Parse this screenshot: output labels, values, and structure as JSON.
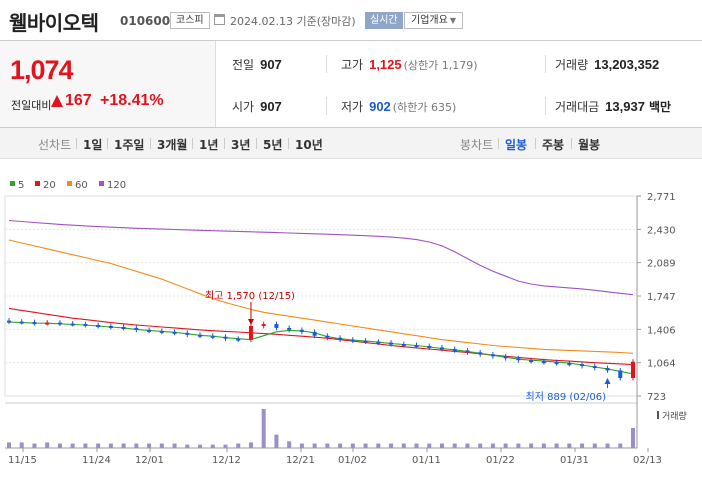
{
  "header": {
    "stock_name": "웰바이오텍",
    "stock_code": "010600",
    "market": "코스피",
    "date_text": "2024.02.13 기준(장마감)",
    "realtime_label": "실시간",
    "overview_label": "기업개요"
  },
  "quote": {
    "price": "1,074",
    "change_label": "전일대비",
    "change_value": "167",
    "change_rate": "+18.41%",
    "prev_close_label": "전일",
    "prev_close": "907",
    "open_label": "시가",
    "open": "907",
    "high_label": "고가",
    "high": "1,125",
    "upper_limit": "(상한가 1,179)",
    "low_label": "저가",
    "low": "902",
    "lower_limit": "(하한가 635)",
    "volume_label": "거래량",
    "volume": "13,203,352",
    "value_label": "거래대금",
    "value": "13,937",
    "value_unit": "백만"
  },
  "period_bar": {
    "chart_label": "선차트",
    "periods": [
      "1일",
      "1주일",
      "3개월",
      "1년",
      "3년",
      "5년",
      "10년"
    ],
    "candle_label": "봉차트",
    "candle_periods": [
      "일봉",
      "주봉",
      "월봉"
    ],
    "active_candle": "일봉"
  },
  "colors": {
    "up": "#e0141e",
    "down": "#1a5bd6",
    "ma5": "#2ea32e",
    "ma20": "#e0141e",
    "ma60": "#f08c1a",
    "ma120": "#a052c8",
    "volume": "#9c8ec8"
  },
  "chart_data": {
    "type": "line",
    "legend": [
      {
        "name": "5",
        "color": "#2ea32e"
      },
      {
        "name": "20",
        "color": "#e0141e"
      },
      {
        "name": "60",
        "color": "#f08c1a"
      },
      {
        "name": "120",
        "color": "#a052c8"
      }
    ],
    "y_ticks": [
      "2,771",
      "2,430",
      "2,089",
      "1,747",
      "1,406",
      "1,064",
      "723"
    ],
    "ylim": [
      723,
      2771
    ],
    "x_ticks": [
      "11/15",
      "11/24",
      "12/01",
      "12/12",
      "12/21",
      "01/02",
      "01/11",
      "01/22",
      "01/31",
      "02/13"
    ],
    "high_annotation": "최고 1,570 (12/15)",
    "low_annotation": "최저 889 (02/06)",
    "volume_label": "거래량",
    "series": [
      {
        "name": "120",
        "values": [
          2520,
          2510,
          2500,
          2490,
          2480,
          2472,
          2465,
          2458,
          2452,
          2446,
          2440,
          2436,
          2432,
          2428,
          2424,
          2420,
          2416,
          2412,
          2408,
          2404,
          2400,
          2396,
          2392,
          2388,
          2384,
          2380,
          2375,
          2370,
          2364,
          2358,
          2350,
          2340,
          2325,
          2300,
          2260,
          2200,
          2130,
          2060,
          2000,
          1950,
          1900,
          1870,
          1850,
          1840,
          1830,
          1820,
          1805,
          1790,
          1775,
          1760
        ]
      },
      {
        "name": "60",
        "values": [
          2320,
          2290,
          2260,
          2230,
          2200,
          2170,
          2140,
          2110,
          2080,
          2040,
          2000,
          1960,
          1920,
          1870,
          1820,
          1770,
          1720,
          1680,
          1645,
          1610,
          1580,
          1560,
          1540,
          1520,
          1500,
          1480,
          1460,
          1440,
          1420,
          1400,
          1380,
          1360,
          1340,
          1320,
          1300,
          1285,
          1270,
          1255,
          1240,
          1230,
          1220,
          1210,
          1200,
          1195,
          1190,
          1185,
          1180,
          1175,
          1168,
          1160
        ]
      },
      {
        "name": "20",
        "values": [
          1620,
          1600,
          1580,
          1560,
          1540,
          1520,
          1505,
          1490,
          1475,
          1462,
          1450,
          1440,
          1430,
          1420,
          1410,
          1400,
          1392,
          1385,
          1378,
          1370,
          1362,
          1355,
          1345,
          1335,
          1325,
          1315,
          1300,
          1285,
          1270,
          1255,
          1240,
          1228,
          1216,
          1204,
          1192,
          1180,
          1168,
          1155,
          1142,
          1130,
          1118,
          1106,
          1096,
          1088,
          1080,
          1072,
          1064,
          1058,
          1052,
          1046
        ]
      },
      {
        "name": "5",
        "values": [
          1480,
          1475,
          1470,
          1468,
          1462,
          1455,
          1450,
          1440,
          1430,
          1420,
          1405,
          1395,
          1385,
          1375,
          1360,
          1345,
          1335,
          1320,
          1310,
          1300,
          1340,
          1380,
          1395,
          1390,
          1370,
          1330,
          1310,
          1295,
          1285,
          1275,
          1260,
          1250,
          1240,
          1225,
          1210,
          1195,
          1180,
          1160,
          1140,
          1120,
          1100,
          1090,
          1080,
          1070,
          1060,
          1040,
          1020,
          1000,
          975,
          950
        ]
      },
      {
        "name": "close",
        "values": [
          1485,
          1480,
          1470,
          1475,
          1465,
          1460,
          1450,
          1440,
          1430,
          1420,
          1400,
          1390,
          1380,
          1370,
          1350,
          1340,
          1330,
          1310,
          1300,
          1440,
          1460,
          1420,
          1400,
          1380,
          1340,
          1320,
          1300,
          1290,
          1280,
          1270,
          1255,
          1245,
          1235,
          1220,
          1205,
          1190,
          1170,
          1150,
          1130,
          1110,
          1090,
          1080,
          1070,
          1060,
          1050,
          1030,
          1010,
          985,
          907,
          1074
        ]
      },
      {
        "name": "volume",
        "values": [
          5,
          5,
          4,
          5,
          4,
          4,
          4,
          4,
          4,
          4,
          4,
          4,
          4,
          4,
          3,
          3,
          3,
          3,
          4,
          5,
          35,
          12,
          6,
          4,
          4,
          4,
          4,
          4,
          4,
          4,
          4,
          4,
          4,
          4,
          4,
          4,
          4,
          4,
          4,
          4,
          4,
          4,
          4,
          4,
          4,
          4,
          4,
          4,
          4,
          18
        ]
      }
    ]
  }
}
